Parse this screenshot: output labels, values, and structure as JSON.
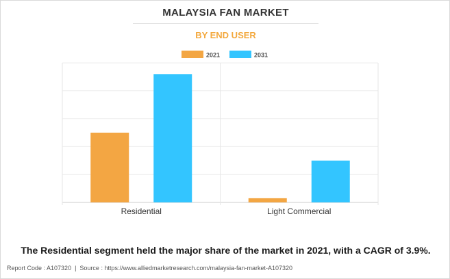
{
  "header": {
    "title": "MALAYSIA FAN MARKET",
    "subtitle": "BY END USER"
  },
  "chart_data": {
    "type": "bar",
    "title": "MALAYSIA FAN MARKET",
    "subtitle": "BY END USER",
    "categories": [
      "Residential",
      "Light Commercial"
    ],
    "series": [
      {
        "name": "2021",
        "color": "#f3a643",
        "values": [
          50,
          3
        ]
      },
      {
        "name": "2031",
        "color": "#33c5ff",
        "values": [
          92,
          30
        ]
      }
    ],
    "xlabel": "",
    "ylabel": "",
    "ylim": [
      0,
      100
    ],
    "grid": true,
    "legend_position": "top-center",
    "y_tick_labels_shown": false
  },
  "caption": "The Residential segment held the major share of the market in 2021, with a CAGR of 3.9%.",
  "footer": {
    "report_code": "Report Code : A107320",
    "separator": "|",
    "source": "Source : https://www.alliedmarketresearch.com/malaysia-fan-market-A107320"
  }
}
